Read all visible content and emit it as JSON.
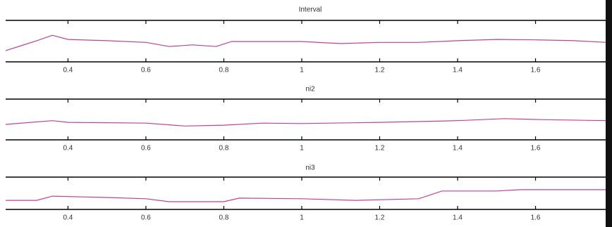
{
  "chart_data": [
    {
      "type": "line",
      "title": "Interval",
      "x": [
        0.24,
        0.28,
        0.32,
        0.36,
        0.4,
        0.5,
        0.6,
        0.66,
        0.72,
        0.78,
        0.82,
        1.0,
        1.1,
        1.2,
        1.3,
        1.4,
        1.5,
        1.6,
        1.7,
        1.78
      ],
      "series": [
        {
          "color": "#c0409a",
          "values": [
            0.27,
            0.39,
            0.51,
            0.64,
            0.54,
            0.51,
            0.47,
            0.37,
            0.41,
            0.37,
            0.49,
            0.49,
            0.44,
            0.47,
            0.47,
            0.51,
            0.54,
            0.53,
            0.51,
            0.47
          ]
        }
      ],
      "xlim": [
        0.24,
        1.78
      ],
      "ylim": [
        0,
        1
      ],
      "xticks": [
        0.4,
        0.6,
        0.8,
        1,
        1.2,
        1.4,
        1.6
      ]
    },
    {
      "type": "line",
      "title": "ni2",
      "x": [
        0.24,
        0.36,
        0.4,
        0.6,
        0.7,
        0.8,
        0.9,
        1.0,
        1.2,
        1.4,
        1.52,
        1.6,
        1.78
      ],
      "series": [
        {
          "color": "#c0409a",
          "values": [
            0.38,
            0.47,
            0.43,
            0.41,
            0.34,
            0.36,
            0.41,
            0.4,
            0.43,
            0.47,
            0.52,
            0.5,
            0.47
          ]
        }
      ],
      "xlim": [
        0.24,
        1.78
      ],
      "ylim": [
        0,
        1
      ],
      "xticks": [
        0.4,
        0.6,
        0.8,
        1,
        1.2,
        1.4,
        1.6
      ]
    },
    {
      "type": "line",
      "title": "ni3",
      "x": [
        0.24,
        0.32,
        0.36,
        0.5,
        0.6,
        0.66,
        0.8,
        0.84,
        1.0,
        1.14,
        1.3,
        1.36,
        1.5,
        1.56,
        1.78
      ],
      "series": [
        {
          "color": "#c0409a",
          "values": [
            0.28,
            0.28,
            0.41,
            0.37,
            0.33,
            0.24,
            0.24,
            0.35,
            0.33,
            0.28,
            0.33,
            0.57,
            0.57,
            0.61,
            0.61
          ]
        }
      ],
      "xlim": [
        0.24,
        1.78
      ],
      "ylim": [
        0,
        1
      ],
      "xticks": [
        0.4,
        0.6,
        0.8,
        1,
        1.2,
        1.4,
        1.6
      ]
    }
  ]
}
